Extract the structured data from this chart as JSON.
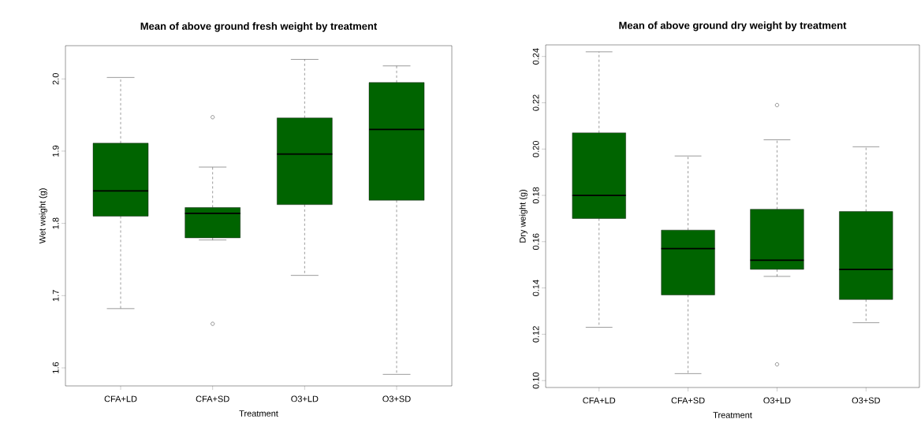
{
  "chart_data": [
    {
      "type": "box",
      "title": "Mean of above ground fresh weight by treatment",
      "xlabel": "Treatment",
      "ylabel": "Wet weight (g)",
      "categories": [
        "CFA+LD",
        "CFA+SD",
        "O3+LD",
        "O3+SD"
      ],
      "color": "#006400",
      "ylim": [
        1.575,
        2.046
      ],
      "yticks": [
        1.6,
        1.7,
        1.8,
        1.9,
        {
          "value": 2,
          "label": "2.0"
        }
      ],
      "boxes": [
        {
          "low": 1.682,
          "q1": 1.81,
          "median": 1.845,
          "q3": 1.911,
          "high": 2.002
        },
        {
          "low": 1.777,
          "q1": 1.78,
          "median": 1.814,
          "q3": 1.822,
          "high": 1.878,
          "outliers": [
            1.947,
            1.661
          ]
        },
        {
          "low": 1.728,
          "q1": 1.826,
          "median": 1.896,
          "q3": 1.946,
          "high": 2.027
        },
        {
          "low": 1.591,
          "q1": 1.832,
          "median": 1.93,
          "q3": 1.995,
          "high": 2.018
        }
      ]
    },
    {
      "type": "box",
      "title": "Mean of above ground dry weight by treatment",
      "xlabel": "Treatment",
      "ylabel": "Dry weight (g)",
      "categories": [
        "CFA+LD",
        "CFA+SD",
        "O3+LD",
        "O3+SD"
      ],
      "color": "#006400",
      "ylim": [
        0.097,
        0.245
      ],
      "yticks": [
        {
          "value": 0.1,
          "label": "0.10"
        },
        0.12,
        0.14,
        0.16,
        0.18,
        {
          "value": 0.2,
          "label": "0.20"
        },
        0.22,
        0.24
      ],
      "boxes": [
        {
          "low": 0.123,
          "q1": 0.17,
          "median": 0.18,
          "q3": 0.207,
          "high": 0.242
        },
        {
          "low": 0.103,
          "q1": 0.137,
          "median": 0.157,
          "q3": 0.165,
          "high": 0.197
        },
        {
          "low": 0.145,
          "q1": 0.148,
          "median": 0.152,
          "q3": 0.174,
          "high": 0.204,
          "outliers": [
            0.219,
            0.107
          ]
        },
        {
          "low": 0.125,
          "q1": 0.135,
          "median": 0.148,
          "q3": 0.173,
          "high": 0.201
        }
      ]
    }
  ]
}
